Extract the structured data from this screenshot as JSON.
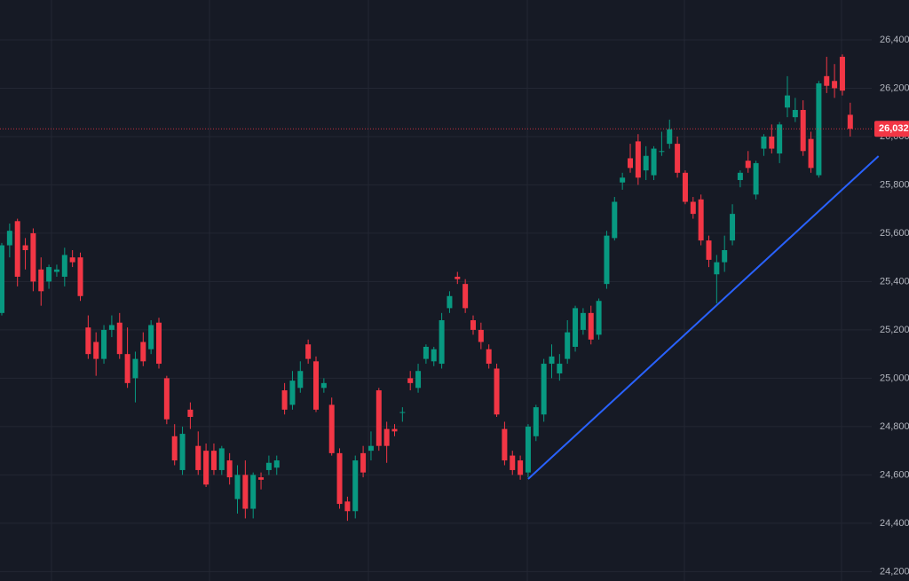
{
  "chart_data": {
    "type": "candlestick",
    "open": [
      25270,
      25550,
      25650,
      25550,
      25600,
      25450,
      25400,
      25440,
      25420,
      25500,
      25500,
      25210,
      25150,
      25080,
      25200,
      25230,
      25100,
      25000,
      25150,
      25120,
      25230,
      25000,
      24760,
      24620,
      24870,
      24720,
      24700,
      24700,
      24620,
      24660,
      24500,
      24600,
      24460,
      24590,
      24620,
      24630,
      24950,
      24890,
      24960,
      25140,
      25070,
      24960,
      24890,
      24690,
      24490,
      24450,
      24690,
      24700,
      24950,
      24790,
      24790,
      24860,
      25000,
      24960,
      25080,
      25070,
      25060,
      25290,
      25420,
      25390,
      25240,
      25200,
      25120,
      25040,
      24790,
      24680,
      24660,
      24610,
      24760,
      24850,
      25060,
      25020,
      25080,
      25130,
      25200,
      25270,
      25180,
      25390,
      25580,
      25810,
      25910,
      25980,
      25860,
      25840,
      25940,
      25970,
      25970,
      25850,
      25730,
      25740,
      25570,
      25430,
      25480,
      25570,
      25820,
      25900,
      25760,
      25950,
      26000,
      25930,
      26120,
      26080,
      26110,
      25990,
      25840,
      26250,
      26230,
      26330,
      26090
    ],
    "high": [
      25560,
      25640,
      25660,
      25580,
      25620,
      25500,
      25470,
      25470,
      25540,
      25530,
      25520,
      25260,
      25190,
      25220,
      25260,
      25270,
      25210,
      25110,
      25190,
      25240,
      25250,
      25010,
      24810,
      24800,
      24900,
      24780,
      24730,
      24730,
      24720,
      24690,
      24640,
      24660,
      24610,
      24610,
      24680,
      24680,
      24980,
      25030,
      25070,
      25160,
      25090,
      25000,
      24920,
      24710,
      24510,
      24680,
      24720,
      24780,
      24960,
      24820,
      24810,
      24880,
      25030,
      25060,
      25140,
      25130,
      25270,
      25360,
      25440,
      25410,
      25260,
      25230,
      25140,
      25060,
      24820,
      24700,
      24680,
      24810,
      24890,
      25080,
      25140,
      25100,
      25240,
      25300,
      25290,
      25300,
      25330,
      25610,
      25750,
      25850,
      25970,
      26010,
      25960,
      25960,
      26020,
      26070,
      26000,
      25860,
      25750,
      25760,
      25590,
      25510,
      25590,
      25720,
      25860,
      25940,
      25900,
      26010,
      26050,
      26060,
      26250,
      26160,
      26150,
      26020,
      26230,
      26330,
      26300,
      26340,
      26140
    ],
    "low": [
      25260,
      25500,
      25380,
      25450,
      25360,
      25300,
      25370,
      25420,
      25380,
      25460,
      25320,
      25080,
      25010,
      25060,
      25170,
      25080,
      24960,
      24900,
      25050,
      25100,
      25040,
      24810,
      24640,
      24600,
      24790,
      24600,
      24550,
      24600,
      24600,
      24560,
      24440,
      24420,
      24420,
      24540,
      24600,
      24600,
      24850,
      24870,
      24940,
      25060,
      24860,
      24940,
      24680,
      24460,
      24410,
      24420,
      24590,
      24660,
      24700,
      24650,
      24760,
      24820,
      24950,
      24940,
      25060,
      25050,
      25040,
      25270,
      25390,
      25270,
      25180,
      25120,
      25040,
      24840,
      24640,
      24600,
      24580,
      24590,
      24740,
      24820,
      25000,
      24990,
      25060,
      25110,
      25180,
      25140,
      25160,
      25370,
      25570,
      25780,
      25850,
      25800,
      25820,
      25820,
      25920,
      25950,
      25830,
      25720,
      25660,
      25550,
      25460,
      25310,
      25440,
      25550,
      25790,
      25850,
      25740,
      25920,
      25930,
      25890,
      26080,
      26060,
      25920,
      25850,
      25830,
      26180,
      26160,
      26170,
      26000
    ],
    "close": [
      25550,
      25610,
      25420,
      25530,
      25400,
      25360,
      25460,
      25450,
      25510,
      25480,
      25340,
      25100,
      25080,
      25200,
      25220,
      25100,
      24980,
      25080,
      25070,
      25220,
      25060,
      24830,
      24660,
      24770,
      24840,
      24620,
      24560,
      24620,
      24710,
      24590,
      24600,
      24460,
      24600,
      24580,
      24650,
      24660,
      24870,
      24990,
      25030,
      25080,
      24870,
      24980,
      24690,
      24480,
      24450,
      24660,
      24610,
      24720,
      24720,
      24720,
      24780,
      24860,
      24980,
      25030,
      25130,
      25120,
      25240,
      25340,
      25410,
      25290,
      25200,
      25150,
      25060,
      24850,
      24660,
      24620,
      24600,
      24800,
      24880,
      25060,
      25090,
      25060,
      25190,
      25290,
      25270,
      25160,
      25320,
      25590,
      25730,
      25830,
      25870,
      25830,
      25920,
      25950,
      25940,
      26030,
      25850,
      25730,
      25680,
      25570,
      25490,
      25480,
      25530,
      25680,
      25850,
      25870,
      25890,
      26000,
      25950,
      26050,
      26170,
      26110,
      25940,
      25870,
      26220,
      26210,
      26200,
      26190,
      26032
    ],
    "up_color": "#089981",
    "down_color": "#f23645",
    "ylim": [
      24161,
      26565
    ],
    "yticks": [
      {
        "value": 24200,
        "label": "24,200"
      },
      {
        "value": 24400,
        "label": "24,400"
      },
      {
        "value": 24600,
        "label": "24,600"
      },
      {
        "value": 24800,
        "label": "24,800"
      },
      {
        "value": 25000,
        "label": "25,000"
      },
      {
        "value": 25200,
        "label": "25,200"
      },
      {
        "value": 25400,
        "label": "25,400"
      },
      {
        "value": 25600,
        "label": "25,600"
      },
      {
        "value": 25800,
        "label": "25,800"
      },
      {
        "value": 26000,
        "label": "26,000"
      },
      {
        "value": 26200,
        "label": "26,200"
      },
      {
        "value": 26400,
        "label": "26,400"
      }
    ],
    "last_price": {
      "value": 26032,
      "label": "26,032"
    },
    "trendline": {
      "x": [
        67,
        111.6
      ],
      "values": [
        24583,
        25919
      ],
      "color": "#2962ff"
    },
    "grid": true
  }
}
